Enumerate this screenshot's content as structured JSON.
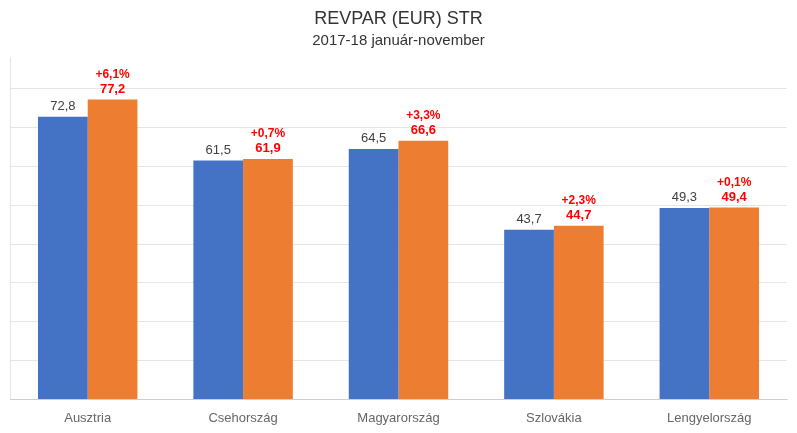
{
  "chart_data": {
    "type": "bar",
    "title": "REVPAR (EUR) STR",
    "subtitle": "2017-18 január-november",
    "categories": [
      "Ausztria",
      "Csehország",
      "Magyarország",
      "Szlovákia",
      "Lengyelország"
    ],
    "series": [
      {
        "color": "#4472C4",
        "values": [
          72.8,
          61.5,
          64.5,
          43.7,
          49.3
        ],
        "value_labels": [
          "72,8",
          "61,5",
          "64,5",
          "43,7",
          "49,3"
        ]
      },
      {
        "color": "#ED7D31",
        "values": [
          77.2,
          61.9,
          66.6,
          44.7,
          49.4
        ],
        "value_labels": [
          "77,2",
          "61,9",
          "66,6",
          "44,7",
          "49,4"
        ],
        "change_pct": [
          6.1,
          0.7,
          3.3,
          2.3,
          0.1
        ],
        "change_labels": [
          "+6,1%",
          "+0,7%",
          "+3,3%",
          "+2,3%",
          "+0,1%"
        ]
      }
    ],
    "ylim": [
      0,
      88
    ],
    "yticks": [
      0,
      10,
      20,
      30,
      40,
      50,
      60,
      70,
      80
    ],
    "grid": true,
    "data_labels": true,
    "tick_labels": "x"
  }
}
